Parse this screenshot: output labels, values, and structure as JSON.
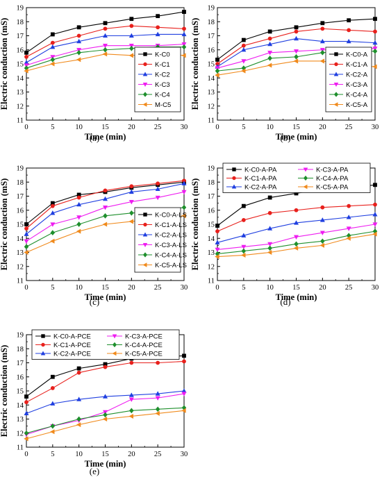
{
  "chart_data": [
    {
      "panel_label": "(a)",
      "type": "line",
      "ylabel": "Electric conduction (mS)",
      "xlabel": "Time (min)",
      "ylim": [
        11,
        19
      ],
      "xlim": [
        0,
        30
      ],
      "x": [
        0,
        5,
        10,
        15,
        20,
        25,
        30
      ],
      "xticks": [
        "0",
        "5",
        "10",
        "15",
        "20",
        "25",
        "30"
      ],
      "yticks": [
        "11",
        "12",
        "13",
        "14",
        "15",
        "16",
        "17",
        "18",
        "19"
      ],
      "legend_position": "lower-right",
      "legend_columns": 1,
      "series": [
        {
          "name": "K-C0",
          "color": "#000000",
          "marker": "square",
          "values": [
            15.8,
            17.1,
            17.6,
            17.9,
            18.2,
            18.4,
            18.7
          ]
        },
        {
          "name": "K-C1",
          "color": "#e8201c",
          "marker": "circle",
          "values": [
            15.5,
            16.5,
            17.0,
            17.5,
            17.7,
            17.6,
            17.5
          ]
        },
        {
          "name": "K-C2",
          "color": "#1f3fe0",
          "marker": "triangle-up",
          "values": [
            15.1,
            16.2,
            16.6,
            17.0,
            17.0,
            17.1,
            17.1
          ]
        },
        {
          "name": "K-C3",
          "color": "#ee1cf0",
          "marker": "triangle-down",
          "values": [
            14.9,
            15.5,
            16.0,
            16.3,
            16.3,
            16.3,
            16.4
          ]
        },
        {
          "name": "K-C4",
          "color": "#1e8f2c",
          "marker": "diamond",
          "values": [
            14.7,
            15.3,
            15.8,
            16.0,
            16.1,
            16.2,
            16.2
          ]
        },
        {
          "name": "M-C5",
          "color": "#f08a1c",
          "marker": "triangle-left",
          "values": [
            14.5,
            15.0,
            15.3,
            15.7,
            15.6,
            15.7,
            15.6
          ]
        }
      ]
    },
    {
      "panel_label": "(b)",
      "type": "line",
      "ylabel": "Electric conduction (mS)",
      "xlabel": "Time (min)",
      "ylim": [
        11,
        19
      ],
      "xlim": [
        0,
        30
      ],
      "x": [
        0,
        5,
        10,
        15,
        20,
        25,
        30
      ],
      "xticks": [
        "0",
        "5",
        "10",
        "15",
        "20",
        "25",
        "30"
      ],
      "yticks": [
        "11",
        "12",
        "13",
        "14",
        "15",
        "16",
        "17",
        "18",
        "19"
      ],
      "legend_position": "lower-right",
      "legend_columns": 1,
      "series": [
        {
          "name": "K-C0-A",
          "color": "#000000",
          "marker": "square",
          "values": [
            15.3,
            16.7,
            17.3,
            17.6,
            17.9,
            18.1,
            18.2
          ]
        },
        {
          "name": "K-C1-A",
          "color": "#e8201c",
          "marker": "circle",
          "values": [
            15.0,
            16.3,
            16.8,
            17.3,
            17.5,
            17.4,
            17.3
          ]
        },
        {
          "name": "K-C2-A",
          "color": "#1f3fe0",
          "marker": "triangle-up",
          "values": [
            14.8,
            16.0,
            16.4,
            16.8,
            16.6,
            16.6,
            16.5
          ]
        },
        {
          "name": "K-C3-A",
          "color": "#ee1cf0",
          "marker": "triangle-down",
          "values": [
            14.7,
            15.2,
            15.8,
            15.9,
            16.0,
            16.0,
            16.1
          ]
        },
        {
          "name": "K-C4-A",
          "color": "#1e8f2c",
          "marker": "diamond",
          "values": [
            14.5,
            14.7,
            15.4,
            15.5,
            15.8,
            15.9,
            15.9
          ]
        },
        {
          "name": "K-C5-A",
          "color": "#f08a1c",
          "marker": "triangle-left",
          "values": [
            14.2,
            14.5,
            14.9,
            15.2,
            15.2,
            14.9,
            14.8
          ]
        }
      ]
    },
    {
      "panel_label": "(c)",
      "type": "line",
      "ylabel": "Electric conduction (mS)",
      "xlabel": "Time (min)",
      "ylim": [
        11,
        19
      ],
      "xlim": [
        0,
        30
      ],
      "x": [
        0,
        5,
        10,
        15,
        20,
        25,
        30
      ],
      "xticks": [
        "0",
        "5",
        "10",
        "15",
        "20",
        "25",
        "30"
      ],
      "yticks": [
        "11",
        "12",
        "13",
        "14",
        "15",
        "16",
        "17",
        "18",
        "19"
      ],
      "legend_position": "lower-right",
      "legend_columns": 1,
      "series": [
        {
          "name": "K-C0-A-LS",
          "color": "#000000",
          "marker": "square",
          "values": [
            15.0,
            16.5,
            17.1,
            17.3,
            17.6,
            17.8,
            18.0
          ]
        },
        {
          "name": "K-C1-A-LS",
          "color": "#e8201c",
          "marker": "circle",
          "values": [
            14.7,
            16.3,
            16.9,
            17.4,
            17.7,
            17.9,
            18.1
          ]
        },
        {
          "name": "K-C2-A-LS",
          "color": "#1f3fe0",
          "marker": "triangle-up",
          "values": [
            14.3,
            15.8,
            16.4,
            16.8,
            17.3,
            17.5,
            17.9
          ]
        },
        {
          "name": "K-C3-A-LS",
          "color": "#ee1cf0",
          "marker": "triangle-down",
          "values": [
            13.8,
            15.0,
            15.5,
            16.2,
            16.6,
            16.9,
            17.3
          ]
        },
        {
          "name": "K-C4-A-LS",
          "color": "#1e8f2c",
          "marker": "diamond",
          "values": [
            13.4,
            14.4,
            15.0,
            15.6,
            15.8,
            15.9,
            16.2
          ]
        },
        {
          "name": "K-C5-A-LS",
          "color": "#f08a1c",
          "marker": "triangle-left",
          "values": [
            13.0,
            13.8,
            14.5,
            15.0,
            15.2,
            15.4,
            15.6
          ]
        }
      ]
    },
    {
      "panel_label": "(d)",
      "type": "line",
      "ylabel": "Electric conduction (mS)",
      "xlabel": "Time (min)",
      "ylim": [
        11,
        19
      ],
      "xlim": [
        0,
        30
      ],
      "x": [
        0,
        5,
        10,
        15,
        20,
        25,
        30
      ],
      "xticks": [
        "0",
        "5",
        "10",
        "15",
        "20",
        "25",
        "30"
      ],
      "yticks": [
        "11",
        "12",
        "13",
        "14",
        "15",
        "16",
        "17",
        "18",
        "19"
      ],
      "legend_position": "top",
      "legend_columns": 2,
      "series": [
        {
          "name": "K-C0-A-PA",
          "color": "#000000",
          "marker": "square",
          "values": [
            14.9,
            16.3,
            16.9,
            17.2,
            17.5,
            17.6,
            17.8
          ]
        },
        {
          "name": "K-C1-A-PA",
          "color": "#e8201c",
          "marker": "circle",
          "values": [
            14.5,
            15.3,
            15.8,
            16.0,
            16.2,
            16.3,
            16.4
          ]
        },
        {
          "name": "K-C2-A-PA",
          "color": "#1f3fe0",
          "marker": "triangle-up",
          "values": [
            13.7,
            14.2,
            14.7,
            15.1,
            15.3,
            15.5,
            15.7
          ]
        },
        {
          "name": "K-C3-A-PA",
          "color": "#ee1cf0",
          "marker": "triangle-down",
          "values": [
            13.2,
            13.4,
            13.6,
            14.1,
            14.4,
            14.7,
            15.0
          ]
        },
        {
          "name": "K-C4-A-PA",
          "color": "#1e8f2c",
          "marker": "diamond",
          "values": [
            12.9,
            13.1,
            13.3,
            13.6,
            13.8,
            14.2,
            14.5
          ]
        },
        {
          "name": "K-C5-A-PA",
          "color": "#f08a1c",
          "marker": "triangle-left",
          "values": [
            12.7,
            12.8,
            13.0,
            13.3,
            13.5,
            14.0,
            14.3
          ]
        }
      ]
    },
    {
      "panel_label": "(e)",
      "type": "line",
      "ylabel": "Electric conduction (mS)",
      "xlabel": "Time (min)",
      "ylim": [
        11,
        19
      ],
      "xlim": [
        0,
        30
      ],
      "x": [
        0,
        5,
        10,
        15,
        20,
        25,
        30
      ],
      "xticks": [
        "0",
        "5",
        "10",
        "15",
        "20",
        "25",
        "30"
      ],
      "yticks": [
        "11",
        "12",
        "13",
        "14",
        "15",
        "16",
        "17",
        "18",
        "19"
      ],
      "legend_position": "top",
      "legend_columns": 2,
      "series": [
        {
          "name": "K-C0-A-PCE",
          "color": "#000000",
          "marker": "square",
          "values": [
            14.6,
            16.0,
            16.6,
            16.9,
            17.3,
            17.4,
            17.5
          ]
        },
        {
          "name": "K-C1-A-PCE",
          "color": "#e8201c",
          "marker": "circle",
          "values": [
            14.2,
            15.2,
            16.3,
            16.7,
            17.0,
            17.0,
            17.1
          ]
        },
        {
          "name": "K-C2-A-PCE",
          "color": "#1f3fe0",
          "marker": "triangle-up",
          "values": [
            13.4,
            14.1,
            14.4,
            14.6,
            14.7,
            14.8,
            15.0
          ]
        },
        {
          "name": "K-C3-A-PCE",
          "color": "#ee1cf0",
          "marker": "triangle-down",
          "values": [
            11.9,
            12.5,
            12.9,
            13.5,
            14.4,
            14.5,
            14.8
          ]
        },
        {
          "name": "K-C4-A-PCE",
          "color": "#1e8f2c",
          "marker": "diamond",
          "values": [
            12.0,
            12.5,
            13.0,
            13.3,
            13.6,
            13.7,
            13.8
          ]
        },
        {
          "name": "K-C5-A-PCE",
          "color": "#f08a1c",
          "marker": "triangle-left",
          "values": [
            11.6,
            12.1,
            12.6,
            13.0,
            13.2,
            13.4,
            13.6
          ]
        }
      ]
    }
  ]
}
